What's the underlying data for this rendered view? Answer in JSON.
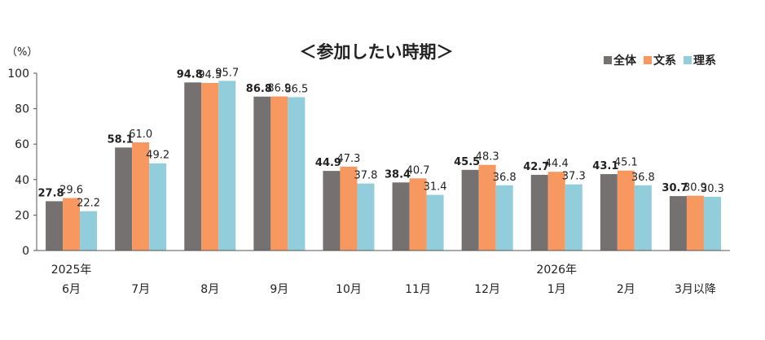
{
  "chart_data": {
    "type": "bar",
    "title": "＜参加したい時期＞",
    "ylabel": "（%）",
    "ylim": [
      0,
      100
    ],
    "yticks": [
      0,
      20,
      40,
      60,
      80,
      100
    ],
    "categories": [
      {
        "line1": "2025年",
        "line2": "6月"
      },
      {
        "line1": "",
        "line2": "7月"
      },
      {
        "line1": "",
        "line2": "8月"
      },
      {
        "line1": "",
        "line2": "9月"
      },
      {
        "line1": "",
        "line2": "10月"
      },
      {
        "line1": "",
        "line2": "11月"
      },
      {
        "line1": "",
        "line2": "12月"
      },
      {
        "line1": "2026年",
        "line2": "1月"
      },
      {
        "line1": "",
        "line2": "2月"
      },
      {
        "line1": "",
        "line2": "3月以降"
      }
    ],
    "series": [
      {
        "name": "全体",
        "color": "#767171",
        "values": [
          27.8,
          58.1,
          94.8,
          86.8,
          44.9,
          38.4,
          45.5,
          42.7,
          43.1,
          30.7
        ]
      },
      {
        "name": "文系",
        "color": "#F79860",
        "values": [
          29.6,
          61.0,
          94.5,
          86.9,
          47.3,
          40.7,
          48.3,
          44.4,
          45.1,
          30.9
        ]
      },
      {
        "name": "理系",
        "color": "#92CDDC",
        "values": [
          22.2,
          49.2,
          95.7,
          86.5,
          37.8,
          31.4,
          36.8,
          37.3,
          36.8,
          30.3
        ]
      }
    ]
  }
}
